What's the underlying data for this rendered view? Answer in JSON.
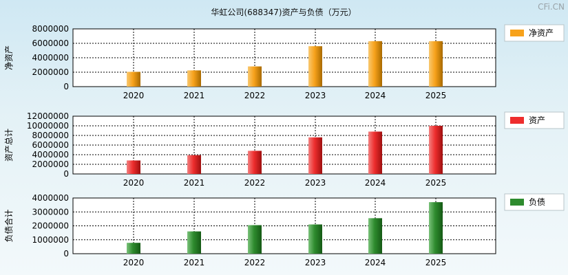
{
  "title": "华虹公司(688347)资产与负债（万元）",
  "brand": "CFi.CN",
  "colors": {
    "net_assets": "#f7a21b",
    "total_assets": "#ee2d2d",
    "liabilities": "#2e8b2e"
  },
  "chart_data": [
    {
      "type": "bar",
      "ylabel": "净资产",
      "categories": [
        "2020",
        "2021",
        "2022",
        "2023",
        "2024",
        "2025"
      ],
      "ylim": [
        0,
        8000000
      ],
      "yticks": [
        "0",
        "2000000",
        "4000000",
        "6000000",
        "8000000"
      ],
      "series": [
        {
          "name": "净资产",
          "values": [
            2050000,
            2250000,
            2800000,
            5600000,
            6300000,
            6300000
          ]
        }
      ],
      "legend": "right",
      "grid": true
    },
    {
      "type": "bar",
      "ylabel": "资产总计",
      "categories": [
        "2020",
        "2021",
        "2022",
        "2023",
        "2024",
        "2025"
      ],
      "ylim": [
        0,
        12000000
      ],
      "yticks": [
        "0",
        "2000000",
        "4000000",
        "6000000",
        "8000000",
        "10000000",
        "12000000"
      ],
      "series": [
        {
          "name": "资产",
          "values": [
            2800000,
            3900000,
            4800000,
            7600000,
            8800000,
            10000000
          ]
        }
      ],
      "legend": "right",
      "grid": true
    },
    {
      "type": "bar",
      "ylabel": "负债合计",
      "categories": [
        "2020",
        "2021",
        "2022",
        "2023",
        "2024",
        "2025"
      ],
      "ylim": [
        0,
        4000000
      ],
      "yticks": [
        "0",
        "1000000",
        "2000000",
        "3000000",
        "4000000"
      ],
      "series": [
        {
          "name": "负债",
          "values": [
            780000,
            1600000,
            2050000,
            2100000,
            2550000,
            3700000
          ]
        }
      ],
      "legend": "right",
      "grid": true
    }
  ]
}
